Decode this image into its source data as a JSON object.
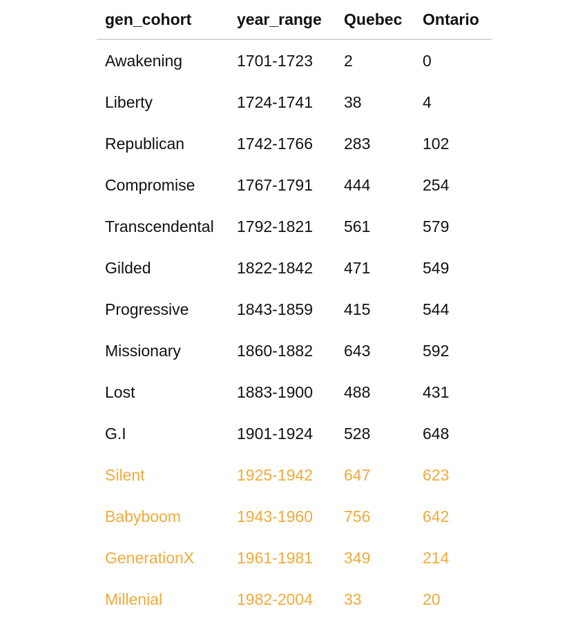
{
  "table": {
    "headers": [
      "gen_cohort",
      "year_range",
      "Quebec",
      "Ontario"
    ],
    "highlight_color": "#f0ab3a",
    "rows": [
      {
        "gen_cohort": "Awakening",
        "year_range": "1701-1723",
        "Quebec": "2",
        "Ontario": "0",
        "highlight": false
      },
      {
        "gen_cohort": "Liberty",
        "year_range": "1724-1741",
        "Quebec": "38",
        "Ontario": "4",
        "highlight": false
      },
      {
        "gen_cohort": "Republican",
        "year_range": "1742-1766",
        "Quebec": "283",
        "Ontario": "102",
        "highlight": false
      },
      {
        "gen_cohort": "Compromise",
        "year_range": "1767-1791",
        "Quebec": "444",
        "Ontario": "254",
        "highlight": false
      },
      {
        "gen_cohort": "Transcendental",
        "year_range": "1792-1821",
        "Quebec": "561",
        "Ontario": "579",
        "highlight": false
      },
      {
        "gen_cohort": "Gilded",
        "year_range": "1822-1842",
        "Quebec": "471",
        "Ontario": "549",
        "highlight": false
      },
      {
        "gen_cohort": "Progressive",
        "year_range": "1843-1859",
        "Quebec": "415",
        "Ontario": "544",
        "highlight": false
      },
      {
        "gen_cohort": "Missionary",
        "year_range": "1860-1882",
        "Quebec": "643",
        "Ontario": "592",
        "highlight": false
      },
      {
        "gen_cohort": "Lost",
        "year_range": "1883-1900",
        "Quebec": "488",
        "Ontario": "431",
        "highlight": false
      },
      {
        "gen_cohort": "G.I",
        "year_range": "1901-1924",
        "Quebec": "528",
        "Ontario": "648",
        "highlight": false
      },
      {
        "gen_cohort": "Silent",
        "year_range": "1925-1942",
        "Quebec": "647",
        "Ontario": "623",
        "highlight": true
      },
      {
        "gen_cohort": "Babyboom",
        "year_range": "1943-1960",
        "Quebec": "756",
        "Ontario": "642",
        "highlight": true
      },
      {
        "gen_cohort": "GenerationX",
        "year_range": "1961-1981",
        "Quebec": "349",
        "Ontario": "214",
        "highlight": true
      },
      {
        "gen_cohort": "Millenial",
        "year_range": "1982-2004",
        "Quebec": "33",
        "Ontario": "20",
        "highlight": true
      }
    ]
  }
}
